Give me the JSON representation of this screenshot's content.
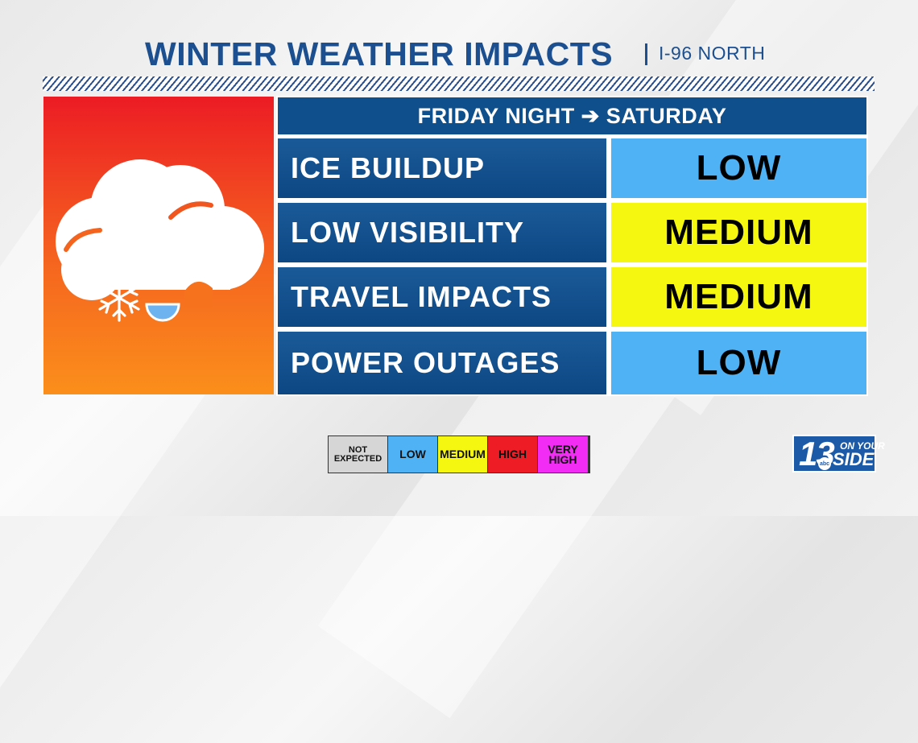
{
  "header": {
    "title": "WINTER WEATHER IMPACTS",
    "subtitle": "I-96 NORTH"
  },
  "icon": {
    "name": "cloud-snow-ice-icon"
  },
  "table": {
    "period": "FRIDAY NIGHT ➔ SATURDAY",
    "rows": [
      {
        "label": "ICE BUILDUP",
        "level": "LOW",
        "color": "#4eb2f5"
      },
      {
        "label": "LOW VISIBILITY",
        "level": "MEDIUM",
        "color": "#f5f710"
      },
      {
        "label": "TRAVEL IMPACTS",
        "level": "MEDIUM",
        "color": "#f5f710"
      },
      {
        "label": "POWER OUTAGES",
        "level": "LOW",
        "color": "#4eb2f5"
      }
    ]
  },
  "legend": {
    "items": [
      {
        "line1": "NOT",
        "line2": "EXPECTED",
        "color": "#d6d6d6"
      },
      {
        "line1": "LOW",
        "line2": "",
        "color": "#4eb2f5"
      },
      {
        "line1": "MEDIUM",
        "line2": "",
        "color": "#f5f710"
      },
      {
        "line1": "HIGH",
        "line2": "",
        "color": "#ee1c24"
      },
      {
        "line1": "VERY",
        "line2": "HIGH",
        "color": "#f22bf5"
      }
    ]
  },
  "logo": {
    "number": "13",
    "network": "abc",
    "top_text": "ON YOUR",
    "bottom_text": "SIDE"
  }
}
